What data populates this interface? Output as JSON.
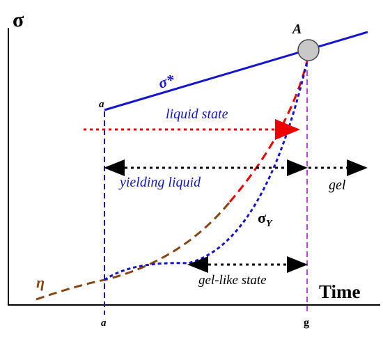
{
  "axes": {
    "y_label": "σ",
    "x_label": "Time"
  },
  "points": {
    "A": "A",
    "a_top": "a",
    "a_bottom": "a",
    "g": "g"
  },
  "curves": {
    "sigma_star": "σ*",
    "sigma_y": {
      "symbol": "σ",
      "subscript": "Y"
    },
    "eta": "η"
  },
  "regions": {
    "liquid_state": "liquid state",
    "yielding_liquid": "yielding liquid",
    "gel": "gel",
    "gel_like_state": "gel-like state"
  }
}
